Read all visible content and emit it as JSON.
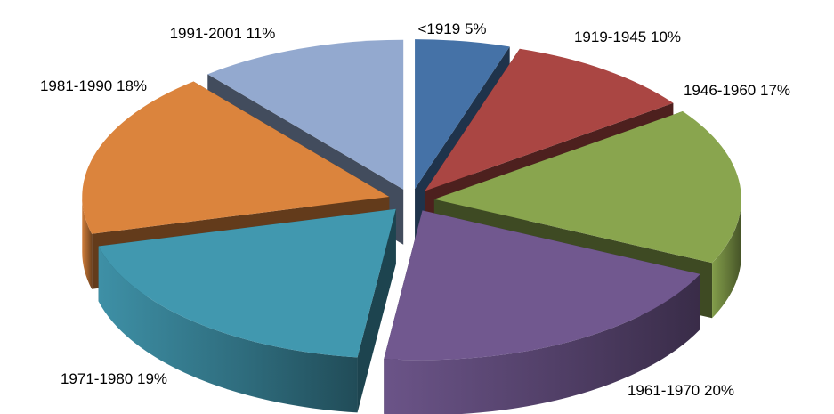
{
  "chart_data": {
    "type": "pie",
    "variant": "3d-exploded",
    "title": "",
    "categories": [
      "<1919",
      "1919-1945",
      "1946-1960",
      "1961-1970",
      "1971-1980",
      "1981-1990",
      "1991-2001"
    ],
    "values": [
      5,
      10,
      17,
      20,
      19,
      18,
      11
    ],
    "labels": [
      "<1919  5%",
      "1919-1945  10%",
      "1946-1960  17%",
      "1961-1970  20%",
      "1971-1980  19%",
      "1981-1990  18%",
      "1991-2001  11%"
    ],
    "colors": [
      "#4572A7",
      "#AA4643",
      "#89A54E",
      "#71588F",
      "#4198AF",
      "#DB843D",
      "#93A9CF"
    ],
    "legend": "none",
    "grid": false
  }
}
